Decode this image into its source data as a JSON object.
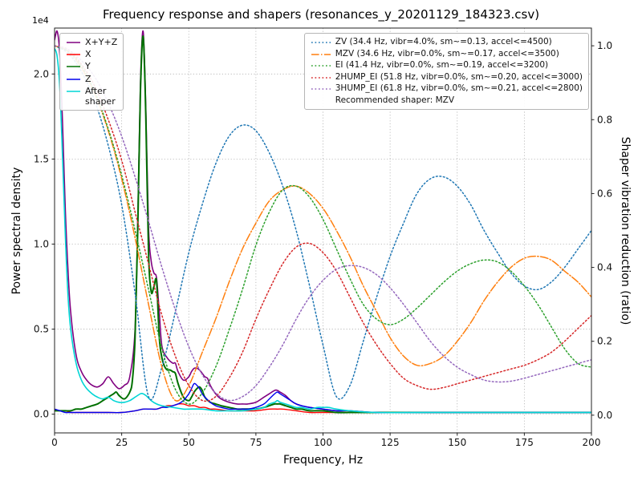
{
  "chart_data": {
    "type": "line",
    "title": "Frequency response and shapers (resonances_y_20201129_184323.csv)",
    "xlabel": "Frequency, Hz",
    "ylabel_left": "Power spectral density",
    "ylabel_right": "Shaper vibration reduction (ratio)",
    "offset_label": "1e4",
    "xlim": [
      0,
      200
    ],
    "x_ticks": [
      0,
      25,
      50,
      75,
      100,
      125,
      150,
      175,
      200
    ],
    "ylim_left": [
      -0.11,
      2.27
    ],
    "yticks_left": [
      "0.0",
      "0.5",
      "1.0",
      "1.5",
      "2.0"
    ],
    "ylim_right": [
      -0.048,
      1.048
    ],
    "yticks_right": [
      "0.0",
      "0.2",
      "0.4",
      "0.6",
      "0.8",
      "1.0"
    ],
    "grid": true,
    "grid_color": "#b0b0b0",
    "psd_units": "1e4",
    "psd_series": [
      {
        "name": "xyz",
        "label": "X+Y+Z",
        "color": "#800080",
        "width": 1.6,
        "x": [
          0,
          1,
          2,
          3,
          4,
          5,
          6,
          8,
          10,
          12,
          14,
          16,
          18,
          20,
          22,
          24,
          26,
          28,
          30,
          31,
          32,
          33,
          34,
          35,
          36,
          37,
          38,
          39,
          40,
          42,
          44,
          45,
          46,
          48,
          50,
          51,
          52,
          53,
          54,
          55,
          56,
          57,
          58,
          60,
          62,
          65,
          68,
          70,
          72,
          75,
          78,
          80,
          82,
          83,
          84,
          86,
          88,
          90,
          92,
          95,
          100,
          105,
          110,
          120,
          140,
          160,
          180,
          200
        ],
        "y": [
          2.2,
          2.25,
          2.1,
          1.7,
          1.2,
          0.85,
          0.6,
          0.35,
          0.25,
          0.2,
          0.17,
          0.16,
          0.18,
          0.22,
          0.18,
          0.15,
          0.17,
          0.22,
          0.5,
          1.15,
          1.95,
          2.25,
          1.8,
          1.1,
          0.9,
          0.83,
          0.8,
          0.6,
          0.4,
          0.33,
          0.3,
          0.3,
          0.25,
          0.2,
          0.22,
          0.25,
          0.27,
          0.27,
          0.26,
          0.24,
          0.22,
          0.21,
          0.17,
          0.12,
          0.09,
          0.07,
          0.06,
          0.06,
          0.06,
          0.07,
          0.1,
          0.12,
          0.14,
          0.14,
          0.13,
          0.11,
          0.08,
          0.06,
          0.05,
          0.04,
          0.03,
          0.02,
          0.02,
          0.01,
          0.01,
          0.01,
          0.01,
          0.01
        ]
      },
      {
        "name": "x",
        "label": "X",
        "color": "#ff0000",
        "width": 1.4,
        "x": [
          0,
          2,
          4,
          6,
          8,
          10,
          15,
          20,
          25,
          30,
          33,
          35,
          38,
          40,
          42,
          44,
          46,
          48,
          50,
          52,
          54,
          56,
          58,
          60,
          65,
          70,
          75,
          80,
          83,
          85,
          90,
          95,
          100,
          110,
          120,
          140,
          160,
          180,
          200
        ],
        "y": [
          0.03,
          0.02,
          0.02,
          0.01,
          0.01,
          0.01,
          0.01,
          0.01,
          0.01,
          0.02,
          0.03,
          0.03,
          0.03,
          0.04,
          0.05,
          0.05,
          0.06,
          0.06,
          0.05,
          0.05,
          0.04,
          0.04,
          0.03,
          0.03,
          0.02,
          0.02,
          0.02,
          0.03,
          0.03,
          0.03,
          0.02,
          0.01,
          0.01,
          0.01,
          0.01,
          0.01,
          0.01,
          0.01,
          0.01
        ]
      },
      {
        "name": "y",
        "label": "Y",
        "color": "#007000",
        "width": 2,
        "x": [
          0,
          2,
          4,
          6,
          8,
          10,
          12,
          14,
          16,
          18,
          20,
          22,
          23,
          24,
          26,
          28,
          29,
          30,
          31,
          32,
          33,
          34,
          35,
          36,
          37,
          38,
          39,
          40,
          41,
          42,
          43,
          44,
          45,
          46,
          48,
          50,
          51,
          52,
          53,
          54,
          55,
          56,
          58,
          60,
          62,
          65,
          68,
          70,
          73,
          75,
          78,
          80,
          82,
          83,
          84,
          86,
          88,
          90,
          92,
          95,
          100,
          105,
          110,
          120,
          140,
          160,
          180,
          200
        ],
        "y": [
          0.02,
          0.02,
          0.02,
          0.02,
          0.03,
          0.03,
          0.04,
          0.05,
          0.06,
          0.08,
          0.1,
          0.12,
          0.13,
          0.11,
          0.09,
          0.13,
          0.2,
          0.45,
          1.1,
          1.9,
          2.22,
          1.75,
          0.95,
          0.72,
          0.75,
          0.78,
          0.45,
          0.33,
          0.28,
          0.26,
          0.26,
          0.25,
          0.24,
          0.18,
          0.1,
          0.08,
          0.1,
          0.13,
          0.15,
          0.16,
          0.14,
          0.1,
          0.07,
          0.06,
          0.05,
          0.04,
          0.03,
          0.03,
          0.03,
          0.03,
          0.04,
          0.05,
          0.06,
          0.06,
          0.06,
          0.05,
          0.04,
          0.03,
          0.03,
          0.02,
          0.02,
          0.01,
          0.01,
          0.01,
          0.01,
          0.01,
          0.01,
          0.01
        ]
      },
      {
        "name": "z",
        "label": "Z",
        "color": "#0000ee",
        "width": 1.4,
        "x": [
          0,
          2,
          4,
          6,
          8,
          10,
          15,
          20,
          25,
          30,
          33,
          35,
          38,
          40,
          42,
          44,
          46,
          48,
          50,
          51,
          52,
          53,
          54,
          55,
          56,
          58,
          60,
          62,
          65,
          68,
          70,
          72,
          75,
          78,
          80,
          82,
          83,
          84,
          86,
          88,
          90,
          92,
          95,
          100,
          105,
          110,
          120,
          140,
          160,
          180,
          200
        ],
        "y": [
          0.03,
          0.02,
          0.01,
          0.01,
          0.01,
          0.01,
          0.01,
          0.01,
          0.01,
          0.02,
          0.03,
          0.03,
          0.03,
          0.04,
          0.04,
          0.05,
          0.06,
          0.08,
          0.12,
          0.15,
          0.18,
          0.17,
          0.15,
          0.12,
          0.1,
          0.07,
          0.05,
          0.04,
          0.03,
          0.03,
          0.03,
          0.03,
          0.04,
          0.06,
          0.09,
          0.12,
          0.13,
          0.12,
          0.1,
          0.08,
          0.06,
          0.05,
          0.04,
          0.03,
          0.02,
          0.02,
          0.01,
          0.01,
          0.01,
          0.01,
          0.01
        ]
      },
      {
        "name": "after-shaper",
        "label": "After\nshaper",
        "color": "#00d5d5",
        "width": 1.6,
        "x": [
          0,
          1,
          2,
          3,
          4,
          5,
          6,
          8,
          10,
          12,
          14,
          16,
          18,
          20,
          22,
          24,
          26,
          28,
          30,
          32,
          33,
          34,
          36,
          38,
          40,
          44,
          48,
          50,
          55,
          60,
          65,
          70,
          75,
          78,
          80,
          82,
          83,
          84,
          86,
          88,
          90,
          92,
          95,
          98,
          100,
          102,
          105,
          110,
          120,
          140,
          160,
          180,
          200
        ],
        "y": [
          2.15,
          2.1,
          1.9,
          1.5,
          1.05,
          0.7,
          0.5,
          0.3,
          0.2,
          0.15,
          0.12,
          0.1,
          0.09,
          0.1,
          0.08,
          0.07,
          0.07,
          0.08,
          0.1,
          0.12,
          0.12,
          0.11,
          0.08,
          0.06,
          0.05,
          0.04,
          0.03,
          0.03,
          0.03,
          0.02,
          0.02,
          0.02,
          0.03,
          0.04,
          0.06,
          0.07,
          0.08,
          0.07,
          0.06,
          0.05,
          0.04,
          0.04,
          0.03,
          0.04,
          0.04,
          0.04,
          0.03,
          0.02,
          0.01,
          0.01,
          0.01,
          0.01,
          0.01
        ]
      }
    ],
    "shaper_series": [
      {
        "name": "zv",
        "label": "ZV (34.4 Hz, vibr=4.0%, sm~=0.13, accel<=4500)",
        "color": "#1f77b4",
        "dash": "dotted",
        "x_start": 0,
        "x_step": 5,
        "y": [
          1.0,
          0.98,
          0.93,
          0.85,
          0.73,
          0.57,
          0.33,
          0.05,
          0.13,
          0.28,
          0.44,
          0.57,
          0.68,
          0.755,
          0.785,
          0.77,
          0.71,
          0.62,
          0.5,
          0.35,
          0.19,
          0.05,
          0.08,
          0.2,
          0.32,
          0.43,
          0.52,
          0.6,
          0.64,
          0.645,
          0.62,
          0.57,
          0.5,
          0.44,
          0.385,
          0.35,
          0.34,
          0.36,
          0.4,
          0.45,
          0.5
        ]
      },
      {
        "name": "mzv",
        "label": "MZV (34.6 Hz, vibr=0.0%, sm~=0.17, accel<=3500)",
        "color": "#ff7f0e",
        "dash": "dashdot",
        "x_start": 0,
        "x_step": 5,
        "y": [
          1.0,
          0.985,
          0.94,
          0.87,
          0.77,
          0.64,
          0.48,
          0.3,
          0.13,
          0.04,
          0.08,
          0.17,
          0.26,
          0.36,
          0.45,
          0.52,
          0.58,
          0.61,
          0.62,
          0.6,
          0.56,
          0.5,
          0.43,
          0.35,
          0.28,
          0.21,
          0.16,
          0.135,
          0.14,
          0.16,
          0.2,
          0.25,
          0.31,
          0.36,
          0.4,
          0.425,
          0.43,
          0.42,
          0.39,
          0.36,
          0.32
        ]
      },
      {
        "name": "ei",
        "label": "EI (41.4 Hz, vibr=0.0%, sm~=0.19, accel<=3200)",
        "color": "#2ca02c",
        "dash": "dotted",
        "x_start": 0,
        "x_step": 5,
        "y": [
          1.0,
          0.985,
          0.945,
          0.875,
          0.775,
          0.65,
          0.5,
          0.34,
          0.18,
          0.07,
          0.03,
          0.06,
          0.13,
          0.23,
          0.34,
          0.46,
          0.55,
          0.61,
          0.62,
          0.59,
          0.53,
          0.45,
          0.37,
          0.3,
          0.26,
          0.245,
          0.26,
          0.29,
          0.325,
          0.36,
          0.39,
          0.41,
          0.42,
          0.415,
          0.39,
          0.35,
          0.3,
          0.24,
          0.18,
          0.14,
          0.13
        ]
      },
      {
        "name": "2hump-ei",
        "label": "2HUMP_EI (51.8 Hz, vibr=0.0%, sm~=0.20, accel<=3000)",
        "color": "#d62728",
        "dash": "dotted",
        "x_start": 0,
        "x_step": 5,
        "y": [
          1.0,
          0.99,
          0.95,
          0.89,
          0.8,
          0.69,
          0.55,
          0.41,
          0.27,
          0.16,
          0.08,
          0.04,
          0.05,
          0.1,
          0.17,
          0.26,
          0.34,
          0.41,
          0.455,
          0.465,
          0.44,
          0.39,
          0.32,
          0.25,
          0.19,
          0.14,
          0.1,
          0.08,
          0.07,
          0.075,
          0.085,
          0.095,
          0.105,
          0.115,
          0.125,
          0.135,
          0.15,
          0.17,
          0.2,
          0.235,
          0.27
        ]
      },
      {
        "name": "3hump-ei",
        "label": "3HUMP_EI (61.8 Hz, vibr=0.0%, sm~=0.21, accel<=2800)",
        "color": "#9467bd",
        "dash": "dotted",
        "x_start": 0,
        "x_step": 5,
        "y": [
          1.0,
          0.99,
          0.96,
          0.915,
          0.845,
          0.755,
          0.645,
          0.525,
          0.4,
          0.285,
          0.185,
          0.11,
          0.06,
          0.04,
          0.05,
          0.08,
          0.13,
          0.19,
          0.26,
          0.32,
          0.365,
          0.395,
          0.405,
          0.4,
          0.38,
          0.345,
          0.3,
          0.25,
          0.2,
          0.16,
          0.13,
          0.11,
          0.095,
          0.09,
          0.092,
          0.1,
          0.11,
          0.12,
          0.13,
          0.14,
          0.15
        ]
      }
    ],
    "recommended_text": "Recommended shaper: MZV"
  }
}
